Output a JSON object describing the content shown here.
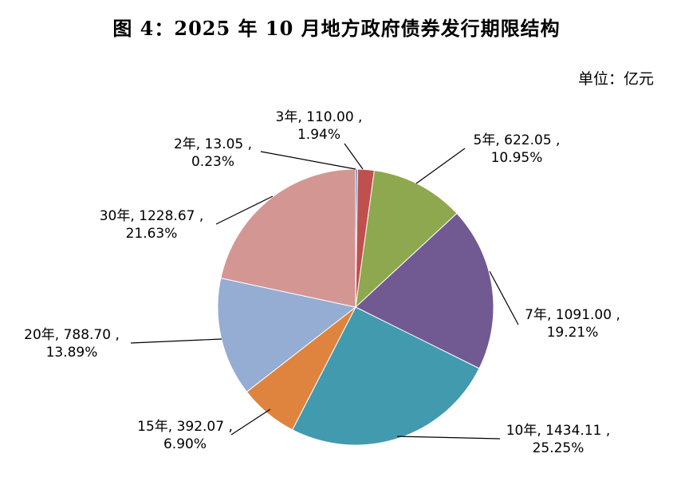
{
  "chart_data": {
    "type": "pie",
    "title": "图 4：2025 年 10 月地方政府债券发行期限结构",
    "unit_label": "单位：亿元",
    "slices": [
      {
        "name": "2年",
        "value": 13.05,
        "percent": "0.23%",
        "value_text": "13.05",
        "color": "#4F81BD"
      },
      {
        "name": "3年",
        "value": 110.0,
        "percent": "1.94%",
        "value_text": "110.00",
        "color": "#C0504D"
      },
      {
        "name": "5年",
        "value": 622.05,
        "percent": "10.95%",
        "value_text": "622.05",
        "color": "#8DA84E"
      },
      {
        "name": "7年",
        "value": 1091.0,
        "percent": "19.21%",
        "value_text": "1091.00",
        "color": "#715992"
      },
      {
        "name": "10年",
        "value": 1434.11,
        "percent": "25.25%",
        "value_text": "1434.11",
        "color": "#429AAF"
      },
      {
        "name": "15年",
        "value": 392.07,
        "percent": "6.90%",
        "value_text": "392.07",
        "color": "#DE843E"
      },
      {
        "name": "20年",
        "value": 788.7,
        "percent": "13.89%",
        "value_text": "788.70",
        "color": "#95ACD3"
      },
      {
        "name": "30年",
        "value": 1228.67,
        "percent": "21.63%",
        "value_text": "1228.67",
        "color": "#D49693"
      }
    ]
  }
}
